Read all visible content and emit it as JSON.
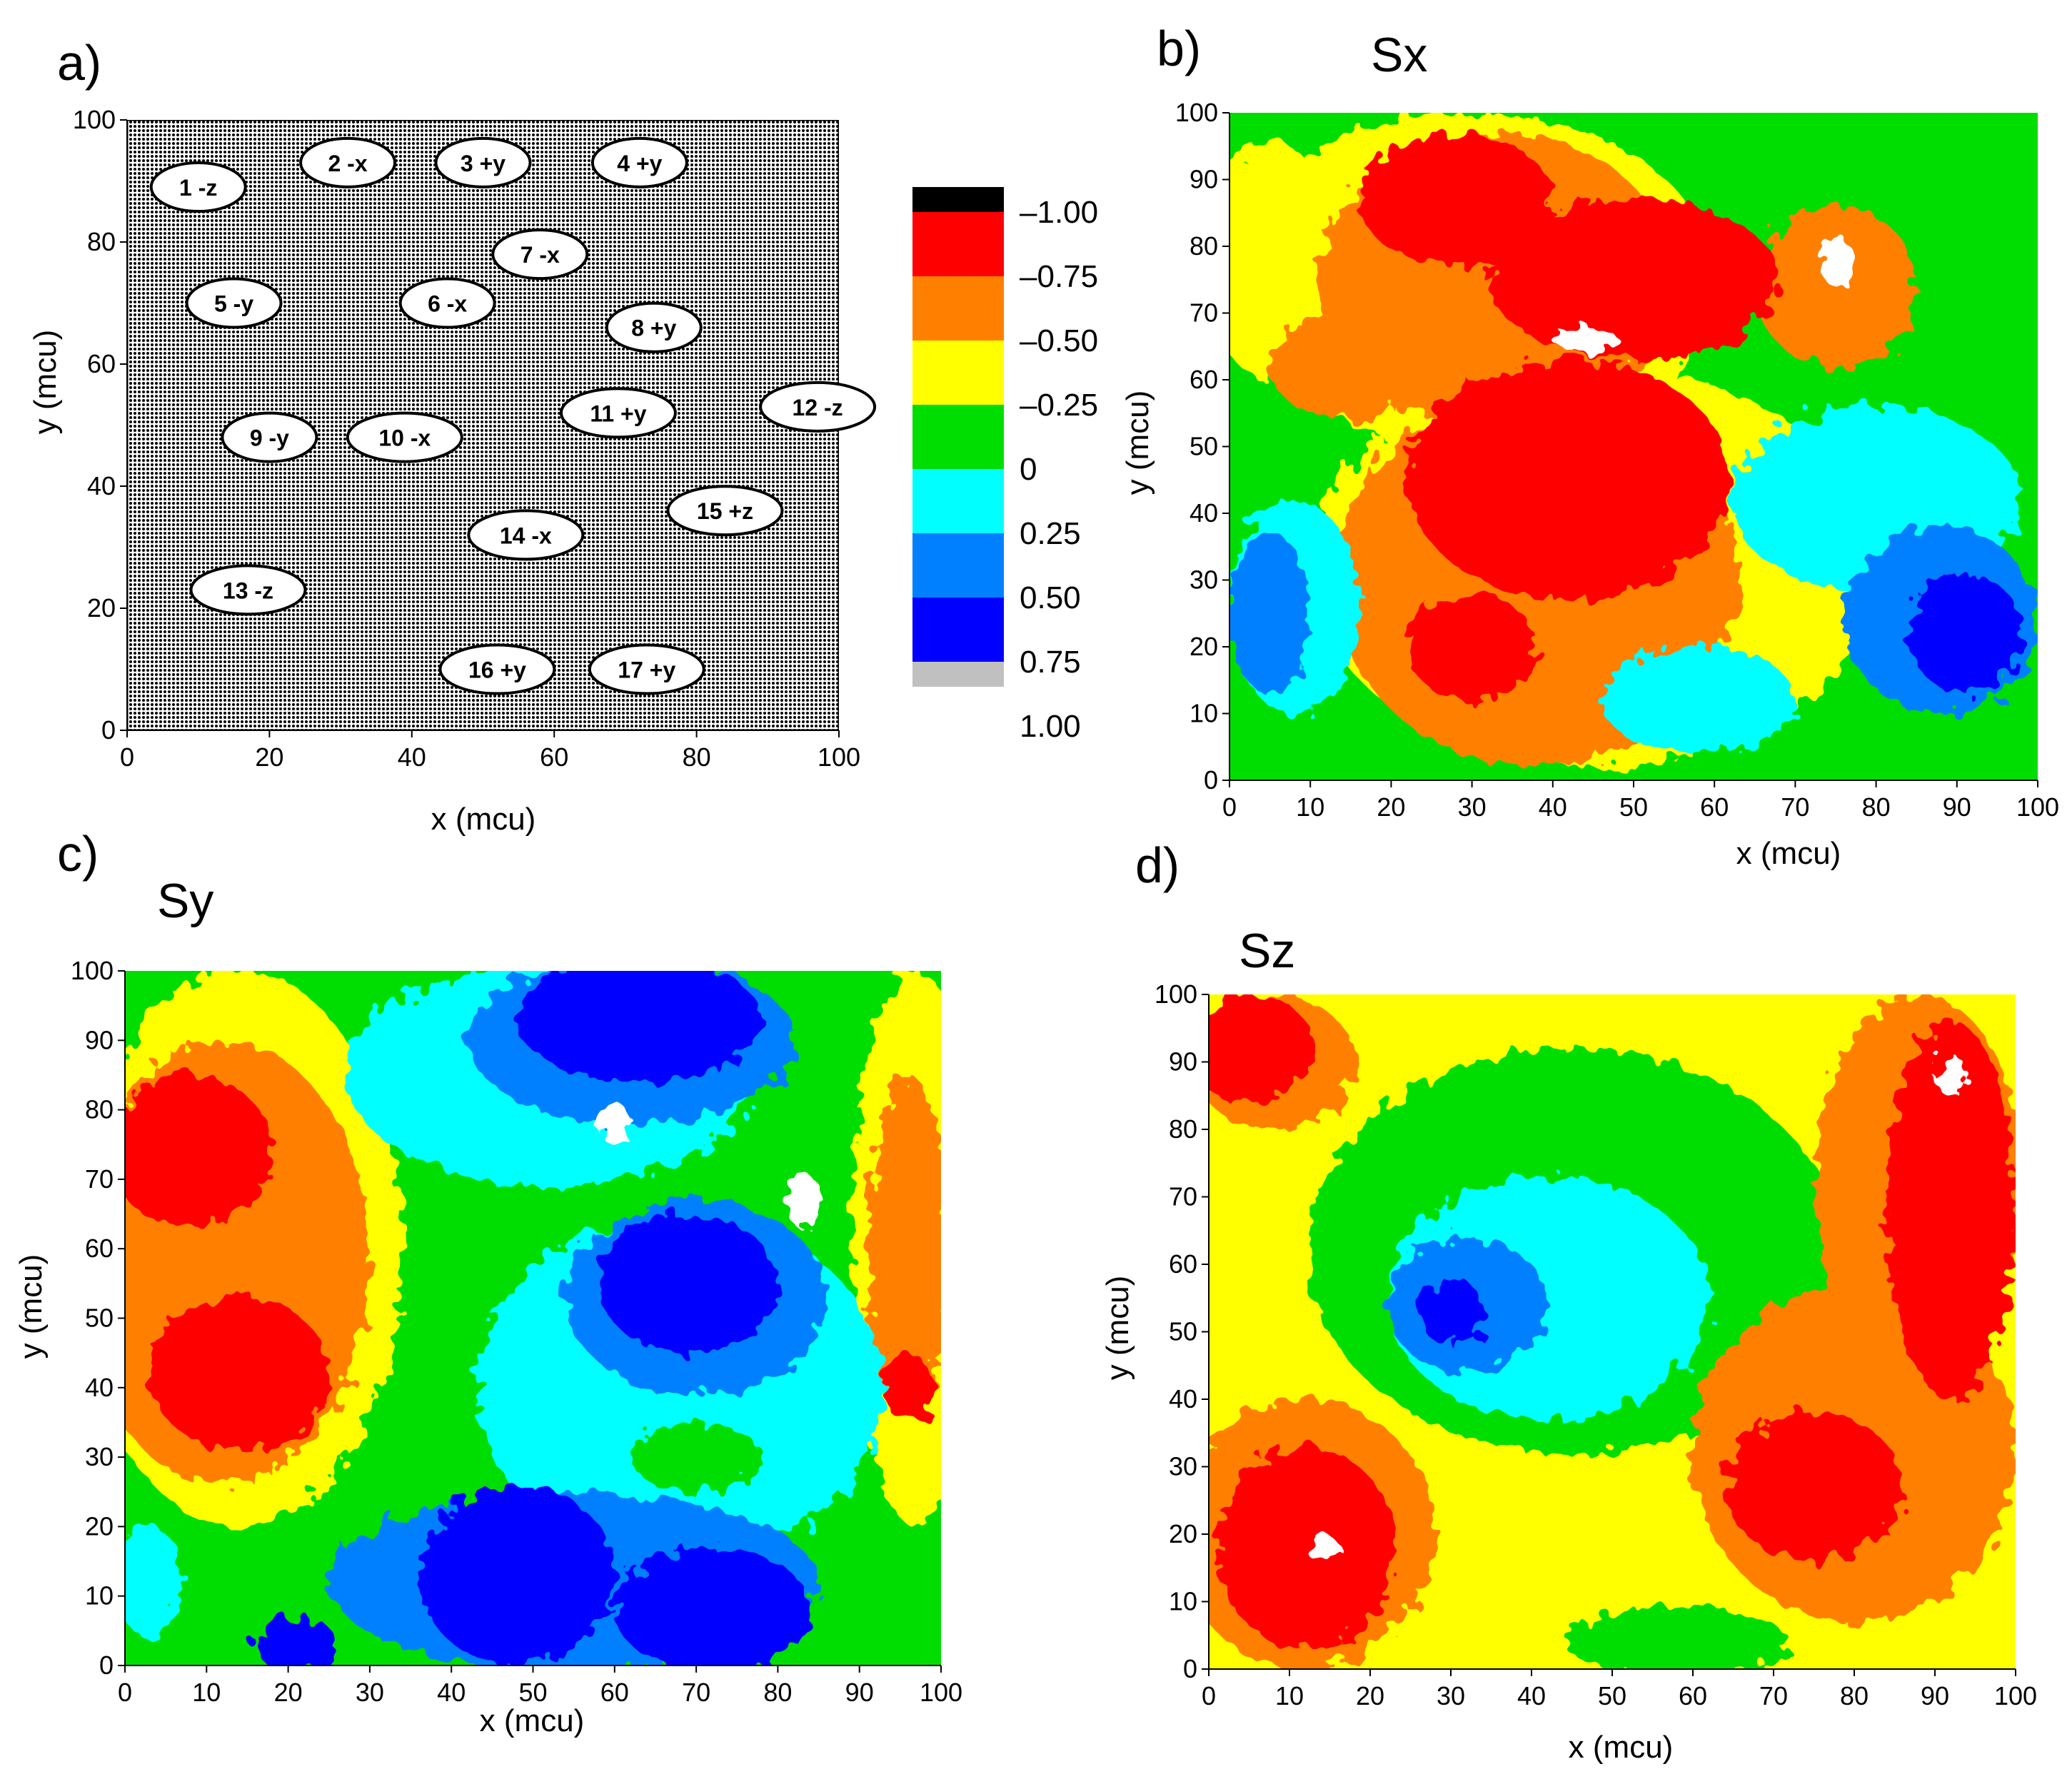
{
  "colors": {
    "black": "#000000",
    "red": "#ff0000",
    "orange": "#ff8000",
    "yellow": "#ffff00",
    "green": "#00dd00",
    "cyan": "#00ffff",
    "light_blue": "#0080ff",
    "blue": "#0000ff",
    "gray": "#c0c0c0",
    "white": "#ffffff"
  },
  "colorbar": {
    "labels": [
      "–1.00",
      "–0.75",
      "–0.50",
      "–0.25",
      "0",
      "0.25",
      "0.50",
      "0.75",
      "1.00"
    ],
    "swatches": [
      "black",
      "red",
      "orange",
      "yellow",
      "green",
      "cyan",
      "light_blue",
      "blue",
      "gray"
    ]
  },
  "chart_data": [
    {
      "panel": "a)",
      "type": "scatter",
      "title": "",
      "xlabel": "x (mcu)",
      "ylabel": "y (mcu)",
      "xlim": [
        0,
        100
      ],
      "ylim": [
        0,
        100
      ],
      "xticks": [
        0,
        20,
        40,
        60,
        80,
        100
      ],
      "yticks": [
        0,
        20,
        40,
        60,
        80,
        100
      ],
      "grains": [
        {
          "label": "1 -z",
          "x": 10,
          "y": 89
        },
        {
          "label": "2 -x",
          "x": 31,
          "y": 93
        },
        {
          "label": "3 +y",
          "x": 50,
          "y": 93
        },
        {
          "label": "4 +y",
          "x": 72,
          "y": 93
        },
        {
          "label": "5 -y",
          "x": 15,
          "y": 70
        },
        {
          "label": "6 -x",
          "x": 45,
          "y": 70
        },
        {
          "label": "7 -x",
          "x": 58,
          "y": 78
        },
        {
          "label": "8 +y",
          "x": 74,
          "y": 66
        },
        {
          "label": "9 -y",
          "x": 20,
          "y": 48
        },
        {
          "label": "10 -x",
          "x": 39,
          "y": 48
        },
        {
          "label": "11 +y",
          "x": 69,
          "y": 52
        },
        {
          "label": "12 -z",
          "x": 97,
          "y": 53
        },
        {
          "label": "13 -z",
          "x": 17,
          "y": 23
        },
        {
          "label": "14 -x",
          "x": 56,
          "y": 32
        },
        {
          "label": "15 +z",
          "x": 84,
          "y": 36
        },
        {
          "label": "16 +y",
          "x": 52,
          "y": 10
        },
        {
          "label": "17 +y",
          "x": 73,
          "y": 10
        }
      ]
    },
    {
      "panel": "b)",
      "type": "heatmap",
      "title": "Sx",
      "xlabel": "x (mcu)",
      "ylabel": "y (mcu)",
      "xlim": [
        0,
        100
      ],
      "ylim": [
        0,
        100
      ],
      "xticks": [
        0,
        10,
        20,
        30,
        40,
        50,
        60,
        70,
        80,
        90,
        100
      ],
      "yticks": [
        0,
        10,
        20,
        30,
        40,
        50,
        60,
        70,
        80,
        90,
        100
      ],
      "background": "green",
      "regions": [
        {
          "color": "yellow",
          "x": 30,
          "y": 75,
          "rx": 30,
          "ry": 25
        },
        {
          "color": "yellow",
          "x": 45,
          "y": 32,
          "rx": 35,
          "ry": 30
        },
        {
          "color": "yellow",
          "x": 5,
          "y": 78,
          "rx": 8,
          "ry": 18
        },
        {
          "color": "orange",
          "x": 33,
          "y": 75,
          "rx": 22,
          "ry": 22
        },
        {
          "color": "orange",
          "x": 38,
          "y": 30,
          "rx": 25,
          "ry": 28
        },
        {
          "color": "orange",
          "x": 15,
          "y": 62,
          "rx": 10,
          "ry": 8
        },
        {
          "color": "orange",
          "x": 75,
          "y": 74,
          "rx": 10,
          "ry": 12
        },
        {
          "color": "red",
          "x": 28,
          "y": 87,
          "rx": 12,
          "ry": 10
        },
        {
          "color": "red",
          "x": 50,
          "y": 75,
          "rx": 18,
          "ry": 12
        },
        {
          "color": "red",
          "x": 42,
          "y": 45,
          "rx": 20,
          "ry": 18
        },
        {
          "color": "red",
          "x": 30,
          "y": 20,
          "rx": 8,
          "ry": 8
        },
        {
          "color": "cyan",
          "x": 80,
          "y": 42,
          "rx": 18,
          "ry": 14
        },
        {
          "color": "cyan",
          "x": 8,
          "y": 26,
          "rx": 8,
          "ry": 16
        },
        {
          "color": "cyan",
          "x": 58,
          "y": 12,
          "rx": 12,
          "ry": 8
        },
        {
          "color": "light_blue",
          "x": 88,
          "y": 24,
          "rx": 12,
          "ry": 14
        },
        {
          "color": "light_blue",
          "x": 5,
          "y": 25,
          "rx": 5,
          "ry": 12
        },
        {
          "color": "blue",
          "x": 91,
          "y": 22,
          "rx": 7,
          "ry": 9
        },
        {
          "color": "white",
          "x": 44,
          "y": 66,
          "rx": 4,
          "ry": 2
        },
        {
          "color": "white",
          "x": 75,
          "y": 78,
          "rx": 2,
          "ry": 4
        }
      ]
    },
    {
      "panel": "c)",
      "type": "heatmap",
      "title": "Sy",
      "xlabel": "x (mcu)",
      "ylabel": "y (mcu)",
      "xlim": [
        0,
        100
      ],
      "ylim": [
        0,
        100
      ],
      "xticks": [
        0,
        10,
        20,
        30,
        40,
        50,
        60,
        70,
        80,
        90,
        100
      ],
      "yticks": [
        0,
        10,
        20,
        30,
        40,
        50,
        60,
        70,
        80,
        90,
        100
      ],
      "background": "green",
      "regions": [
        {
          "color": "yellow",
          "x": 14,
          "y": 60,
          "rx": 20,
          "ry": 40
        },
        {
          "color": "yellow",
          "x": 97,
          "y": 60,
          "rx": 8,
          "ry": 40
        },
        {
          "color": "orange",
          "x": 12,
          "y": 58,
          "rx": 18,
          "ry": 32
        },
        {
          "color": "orange",
          "x": 96,
          "y": 60,
          "rx": 5,
          "ry": 25
        },
        {
          "color": "red",
          "x": 8,
          "y": 74,
          "rx": 10,
          "ry": 11
        },
        {
          "color": "red",
          "x": 14,
          "y": 42,
          "rx": 11,
          "ry": 11
        },
        {
          "color": "red",
          "x": 96,
          "y": 40,
          "rx": 3,
          "ry": 5
        },
        {
          "color": "cyan",
          "x": 52,
          "y": 85,
          "rx": 25,
          "ry": 16
        },
        {
          "color": "cyan",
          "x": 68,
          "y": 40,
          "rx": 25,
          "ry": 25
        },
        {
          "color": "cyan",
          "x": 3,
          "y": 12,
          "rx": 4,
          "ry": 8
        },
        {
          "color": "light_blue",
          "x": 62,
          "y": 90,
          "rx": 20,
          "ry": 12
        },
        {
          "color": "light_blue",
          "x": 70,
          "y": 53,
          "rx": 16,
          "ry": 14
        },
        {
          "color": "light_blue",
          "x": 55,
          "y": 12,
          "rx": 30,
          "ry": 13
        },
        {
          "color": "blue",
          "x": 63,
          "y": 93,
          "rx": 15,
          "ry": 9
        },
        {
          "color": "blue",
          "x": 69,
          "y": 55,
          "rx": 11,
          "ry": 10
        },
        {
          "color": "blue",
          "x": 48,
          "y": 13,
          "rx": 12,
          "ry": 13
        },
        {
          "color": "blue",
          "x": 72,
          "y": 8,
          "rx": 12,
          "ry": 9
        },
        {
          "color": "blue",
          "x": 21,
          "y": 3,
          "rx": 5,
          "ry": 4
        },
        {
          "color": "green",
          "x": 70,
          "y": 30,
          "rx": 8,
          "ry": 5
        },
        {
          "color": "white",
          "x": 83,
          "y": 67,
          "rx": 2,
          "ry": 4
        },
        {
          "color": "white",
          "x": 60,
          "y": 78,
          "rx": 2,
          "ry": 3
        }
      ]
    },
    {
      "panel": "d)",
      "type": "heatmap",
      "title": "Sz",
      "xlabel": "x (mcu)",
      "ylabel": "y (mcu)",
      "xlim": [
        0,
        100
      ],
      "ylim": [
        0,
        100
      ],
      "xticks": [
        0,
        10,
        20,
        30,
        40,
        50,
        60,
        70,
        80,
        90,
        100
      ],
      "yticks": [
        0,
        10,
        20,
        30,
        40,
        50,
        60,
        70,
        80,
        90,
        100
      ],
      "background": "yellow",
      "regions": [
        {
          "color": "green",
          "x": 45,
          "y": 62,
          "rx": 33,
          "ry": 30
        },
        {
          "color": "green",
          "x": 58,
          "y": 4,
          "rx": 14,
          "ry": 5
        },
        {
          "color": "orange",
          "x": 12,
          "y": 20,
          "rx": 16,
          "ry": 20
        },
        {
          "color": "orange",
          "x": 80,
          "y": 32,
          "rx": 20,
          "ry": 25
        },
        {
          "color": "orange",
          "x": 88,
          "y": 72,
          "rx": 13,
          "ry": 28
        },
        {
          "color": "orange",
          "x": 8,
          "y": 90,
          "rx": 10,
          "ry": 10
        },
        {
          "color": "red",
          "x": 12,
          "y": 18,
          "rx": 11,
          "ry": 15
        },
        {
          "color": "red",
          "x": 75,
          "y": 27,
          "rx": 11,
          "ry": 11
        },
        {
          "color": "red",
          "x": 92,
          "y": 68,
          "rx": 8,
          "ry": 28
        },
        {
          "color": "red",
          "x": 5,
          "y": 92,
          "rx": 8,
          "ry": 8
        },
        {
          "color": "cyan",
          "x": 42,
          "y": 55,
          "rx": 20,
          "ry": 18
        },
        {
          "color": "light_blue",
          "x": 32,
          "y": 54,
          "rx": 10,
          "ry": 10
        },
        {
          "color": "blue",
          "x": 30,
          "y": 53,
          "rx": 4,
          "ry": 5
        },
        {
          "color": "white",
          "x": 14,
          "y": 18,
          "rx": 2,
          "ry": 2
        },
        {
          "color": "white",
          "x": 92,
          "y": 88,
          "rx": 2,
          "ry": 3
        }
      ]
    }
  ]
}
